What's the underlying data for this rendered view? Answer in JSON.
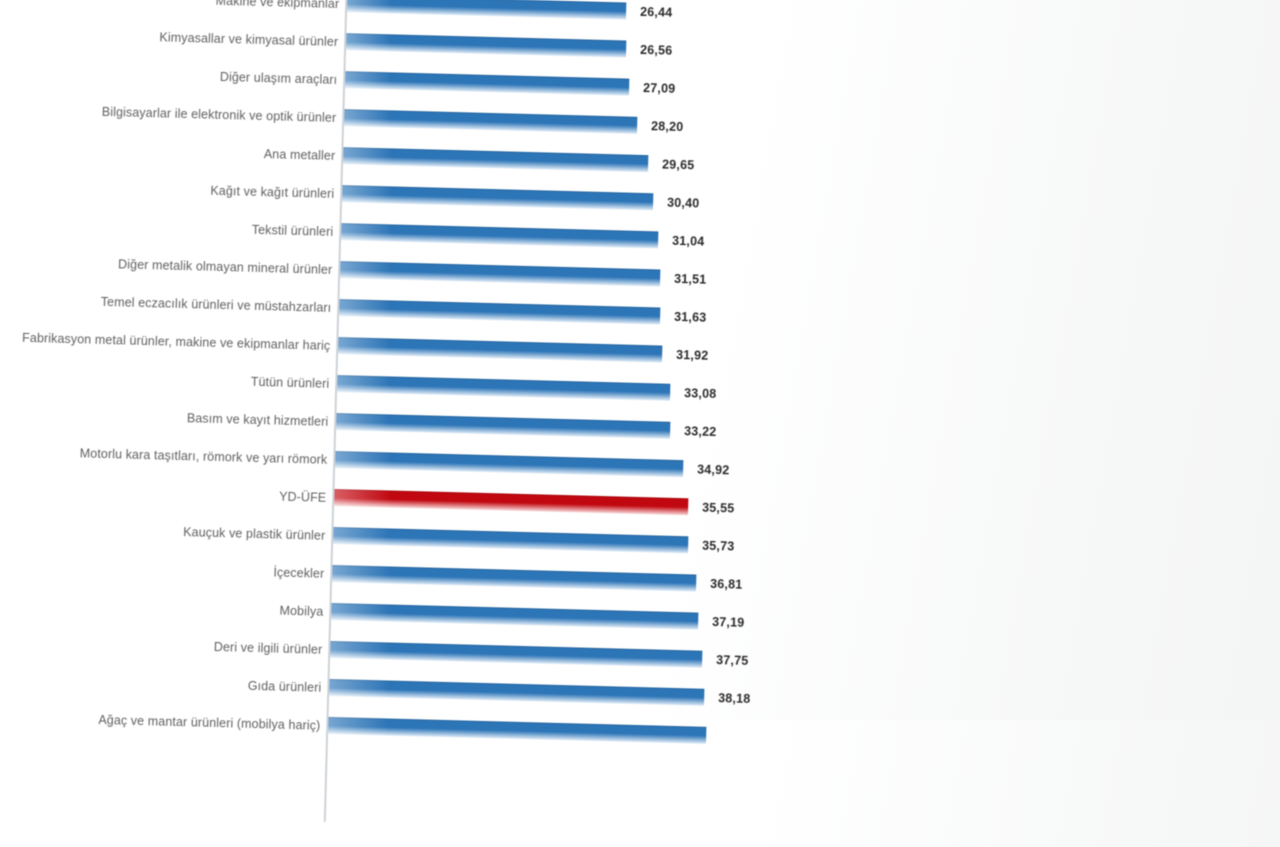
{
  "chart_data": {
    "type": "bar",
    "orientation": "horizontal",
    "title": "",
    "xlabel": "",
    "ylabel": "",
    "legend": null,
    "grid": false,
    "sorted": "ascending-downward",
    "decimal_separator": ",",
    "bar_color": "#2E75B6",
    "highlight_color": "#C00A12",
    "value_label_color": "#2B2B2B",
    "category_label_color": "#5F5F5F",
    "axis_line_color": "#CCD1D6",
    "highlight_index": 13,
    "categories": [
      "Makine ve ekipmanlar",
      "Kimyasallar ve kimyasal ürünler",
      "Diğer ulaşım araçları",
      "Bilgisayarlar ile elektronik ve optik ürünler",
      "Ana metaller",
      "Kağıt ve kağıt ürünleri",
      "Tekstil ürünleri",
      "Diğer metalik olmayan mineral ürünler",
      "Temel eczacılık ürünleri ve müstahzarları",
      "Fabrikasyon metal ürünler, makine ve ekipmanlar hariç",
      "Tütün ürünleri",
      "Basım ve kayıt hizmetleri",
      "Motorlu kara taşıtları, römork ve yarı römork",
      "YD-ÜFE",
      "Kauçuk ve plastik ürünler",
      "İçecekler",
      "Mobilya",
      "Deri ve ilgili ürünler",
      "Gıda ürünleri",
      "Ağaç ve mantar ürünleri (mobilya hariç)"
    ],
    "values": [
      26.44,
      26.56,
      27.09,
      28.2,
      29.65,
      30.4,
      31.04,
      31.51,
      31.63,
      31.92,
      33.08,
      33.22,
      34.92,
      35.55,
      35.73,
      36.81,
      37.19,
      37.75,
      38.18,
      38.5
    ],
    "display_values": [
      "26,44",
      "26,56",
      "27,09",
      "28,20",
      "29,65",
      "30,40",
      "31,04",
      "31,51",
      "31,63",
      "31,92",
      "33,08",
      "33,22",
      "34,92",
      "35,55",
      "35,73",
      "36,81",
      "37,19",
      "37,75",
      "38,18",
      ""
    ]
  }
}
